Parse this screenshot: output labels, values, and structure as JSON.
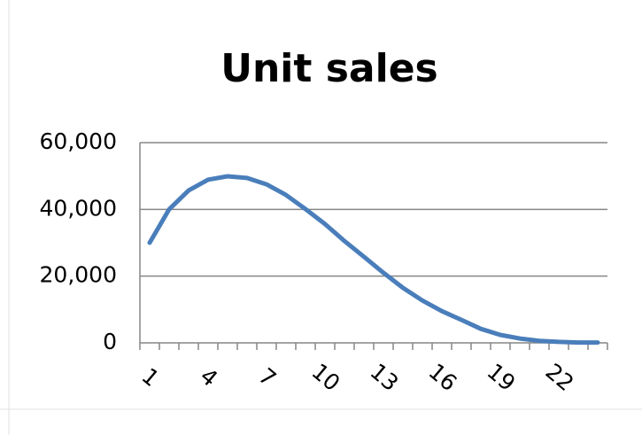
{
  "chart_data": {
    "type": "line",
    "title": "Unit sales",
    "categories": [
      1,
      null,
      null,
      4,
      null,
      null,
      7,
      null,
      null,
      10,
      null,
      null,
      13,
      null,
      null,
      16,
      null,
      null,
      19,
      null,
      null,
      22,
      null,
      null
    ],
    "series": [
      {
        "name": "Unit sales",
        "color": "#4a7ebb",
        "values": [
          30000,
          40000,
          45700,
          48900,
          49900,
          49400,
          47500,
          44300,
          40100,
          35600,
          30500,
          25800,
          21000,
          16500,
          12700,
          9500,
          6900,
          4200,
          2400,
          1300,
          600,
          300,
          100,
          100
        ]
      }
    ],
    "ylim": [
      0,
      60000
    ],
    "yticks": [
      0,
      {
        "value": 20000,
        "label": "20,000"
      },
      {
        "value": 40000,
        "label": "40,000"
      },
      {
        "value": 60000,
        "label": "60,000"
      }
    ],
    "grid": true
  }
}
